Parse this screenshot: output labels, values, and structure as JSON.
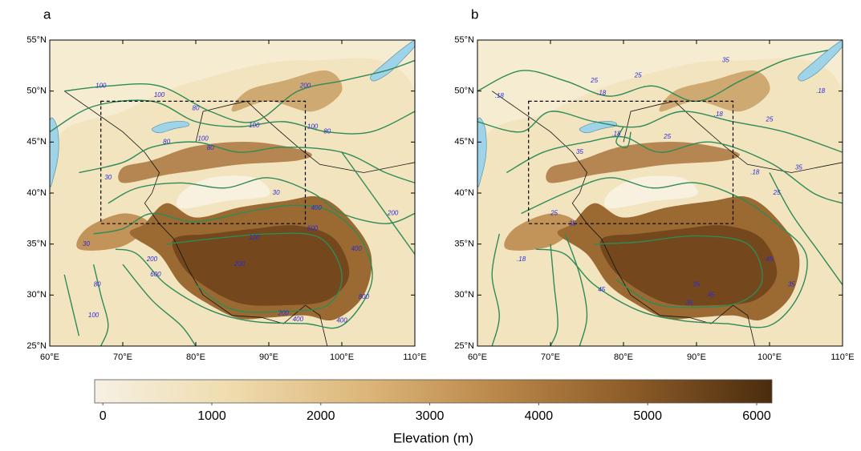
{
  "panels": [
    {
      "label": "a",
      "lat_ticks": [
        {
          "value": 25,
          "label": "25°N"
        },
        {
          "value": 30,
          "label": "30°N"
        },
        {
          "value": 35,
          "label": "35°N"
        },
        {
          "value": 40,
          "label": "40°N"
        },
        {
          "value": 45,
          "label": "45°N"
        },
        {
          "value": 50,
          "label": "50°N"
        },
        {
          "value": 55,
          "label": "55°N"
        }
      ],
      "lon_ticks": [
        {
          "value": 60,
          "label": "60°E"
        },
        {
          "value": 70,
          "label": "70°E"
        },
        {
          "value": 80,
          "label": "80°E"
        },
        {
          "value": 90,
          "label": "90°E"
        },
        {
          "value": 100,
          "label": "100°E"
        },
        {
          "value": 110,
          "label": "110°E"
        }
      ],
      "contour_labels": [
        "100",
        "100",
        "80",
        "100",
        "80",
        "80",
        "100",
        "30",
        "100",
        "80",
        "30",
        "200",
        "200",
        "400",
        "30",
        "200",
        "400",
        "600",
        "80",
        "100",
        "200",
        "400",
        "800",
        "100",
        "200",
        "400",
        "600"
      ]
    },
    {
      "label": "b",
      "lat_ticks": [
        {
          "value": 25,
          "label": "25°N"
        },
        {
          "value": 30,
          "label": "30°N"
        },
        {
          "value": 35,
          "label": "35°N"
        },
        {
          "value": 40,
          "label": "40°N"
        },
        {
          "value": 45,
          "label": "45°N"
        },
        {
          "value": 50,
          "label": "50°N"
        },
        {
          "value": 55,
          "label": "55°N"
        }
      ],
      "lon_ticks": [
        {
          "value": 60,
          "label": "60°E"
        },
        {
          "value": 70,
          "label": "70°E"
        },
        {
          "value": 80,
          "label": "80°E"
        },
        {
          "value": 90,
          "label": "90°E"
        },
        {
          "value": 100,
          "label": "100°E"
        },
        {
          "value": 110,
          "label": "110°E"
        }
      ],
      "contour_labels": [
        ".18",
        "25",
        "25",
        "35",
        ".18",
        "25",
        ".18",
        "25",
        ".18",
        "35",
        "45",
        "35",
        ".18",
        "25",
        "35",
        "45",
        "35",
        ".18",
        "25",
        "35",
        "45",
        "35",
        ".18"
      ]
    }
  ],
  "colorbar": {
    "title": "Elevation (m)",
    "range": [
      -75,
      6140
    ],
    "ticks": [
      0,
      1000,
      2000,
      3000,
      4000,
      5000,
      6000
    ]
  }
}
